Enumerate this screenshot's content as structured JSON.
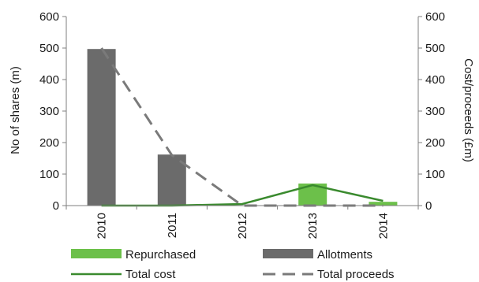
{
  "chart_data": {
    "type": "bar",
    "categories": [
      "2010",
      "2011",
      "2012",
      "2013",
      "2014"
    ],
    "ylabel": "No of shares (m)",
    "y2label": "Cost/proceeds  (£m)",
    "ylim": [
      0,
      600
    ],
    "y2lim": [
      0,
      600
    ],
    "yticks": [
      0,
      100,
      200,
      300,
      400,
      500,
      600
    ],
    "grid": false,
    "legend_position": "bottom",
    "series": [
      {
        "name": "Repurchased",
        "kind": "bar",
        "axis": "left",
        "color": "#6cc04a",
        "values": [
          0,
          0,
          0,
          70,
          12
        ]
      },
      {
        "name": "Allotments",
        "kind": "bar",
        "axis": "left",
        "color": "#6b6b6b",
        "values": [
          497,
          162,
          0,
          0,
          0
        ]
      },
      {
        "name": "Total cost",
        "kind": "line",
        "axis": "right",
        "color": "#3a8a2e",
        "dash": "solid",
        "values": [
          0,
          0,
          5,
          65,
          15
        ]
      },
      {
        "name": "Total proceeds",
        "kind": "line",
        "axis": "right",
        "color": "#7a7a7a",
        "dash": "dashed",
        "values": [
          500,
          160,
          0,
          0,
          0
        ]
      }
    ]
  }
}
